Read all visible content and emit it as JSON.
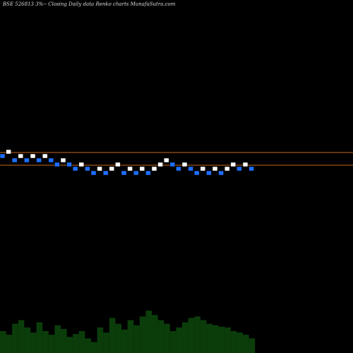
{
  "chart_data": {
    "type": "renko",
    "title": "BSE 526813 3%-- Closing Daily data Renko charts MunafaSutra.com",
    "up_color": "#ffffff",
    "down_color": "#1e6fff",
    "volume_color": "#0b3d0b",
    "levels": [
      0,
      1,
      -1,
      0,
      -1,
      0,
      -1,
      0,
      -1,
      -2,
      -1,
      -2,
      -3,
      -2,
      -3,
      -4,
      -3,
      -4,
      -3,
      -2,
      -4,
      -3,
      -4,
      -3,
      -4,
      -3,
      -2,
      -1,
      -2,
      -3,
      -2,
      -3,
      -4,
      -3,
      -4,
      -3,
      -4,
      -3,
      -2,
      -3,
      -2,
      -3
    ],
    "directions": [
      "down",
      "up",
      "down",
      "up",
      "down",
      "up",
      "down",
      "up",
      "down",
      "down",
      "up",
      "down",
      "down",
      "up",
      "down",
      "down",
      "up",
      "down",
      "up",
      "up",
      "down",
      "up",
      "down",
      "up",
      "down",
      "up",
      "up",
      "up",
      "down",
      "down",
      "up",
      "down",
      "down",
      "up",
      "down",
      "up",
      "down",
      "up",
      "up",
      "down",
      "up",
      "down"
    ],
    "volume": [
      30,
      25,
      40,
      45,
      35,
      28,
      42,
      30,
      25,
      38,
      33,
      22,
      26,
      30,
      20,
      15,
      35,
      28,
      48,
      40,
      32,
      45,
      38,
      50,
      58,
      52,
      45,
      40,
      30,
      35,
      42,
      48,
      50,
      45,
      40,
      38,
      36,
      35,
      30,
      28,
      25,
      20
    ]
  }
}
